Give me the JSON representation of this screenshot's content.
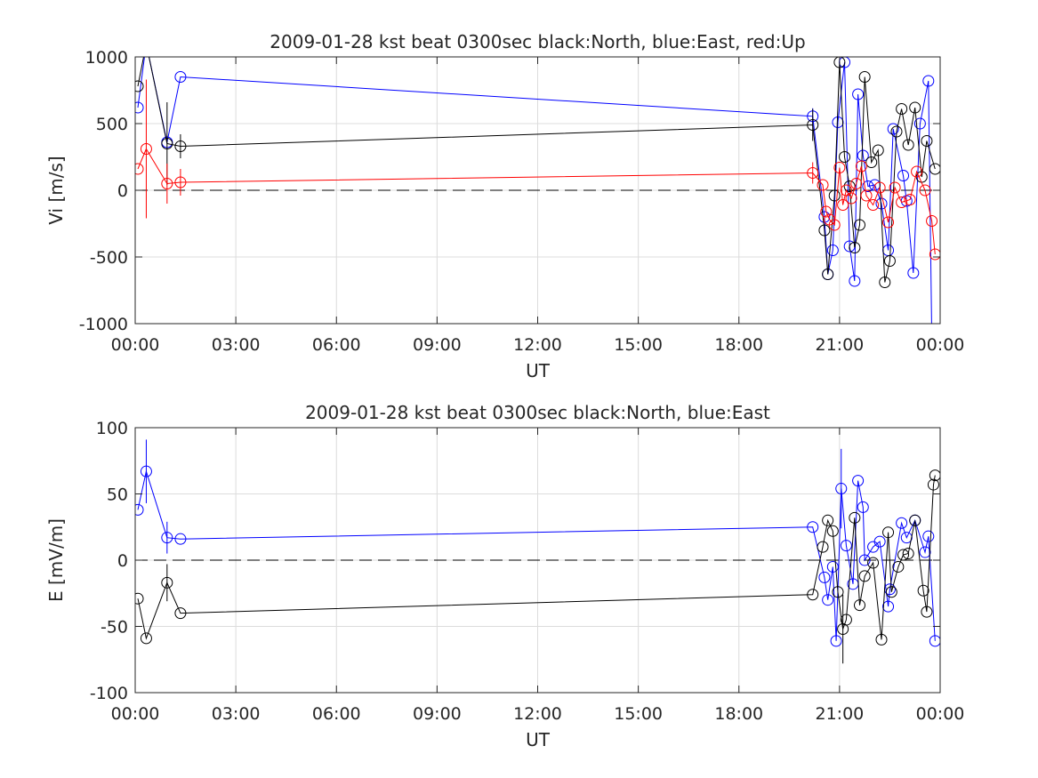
{
  "chart_data": [
    {
      "type": "line",
      "title": "2009-01-28 kst beat 0300sec black:North, blue:East, red:Up",
      "xlabel": "UT",
      "ylabel": "Vi [m/s]",
      "xlim_hours": [
        0,
        24
      ],
      "ylim": [
        -1000,
        1000
      ],
      "xticks": [
        0,
        3,
        6,
        9,
        12,
        15,
        18,
        21,
        24
      ],
      "xtick_labels": [
        "00:00",
        "03:00",
        "06:00",
        "09:00",
        "12:00",
        "15:00",
        "18:00",
        "21:00",
        "00:00"
      ],
      "yticks": [
        -1000,
        -500,
        0,
        500,
        1000
      ],
      "ytick_labels": [
        "-1000",
        "-500",
        "0",
        "500",
        "1000"
      ],
      "grid": true,
      "zero_line": "dashed",
      "series": [
        {
          "color": "#0000ff",
          "x": [
            0.08,
            0.33,
            0.95,
            1.35,
            20.2,
            20.55,
            20.65,
            20.8,
            20.95,
            21.15,
            21.3,
            21.45,
            21.55,
            21.7,
            21.85,
            22.05,
            22.25,
            22.45,
            22.6,
            22.9,
            23.0,
            23.2,
            23.4,
            23.65,
            23.75
          ],
          "y": [
            620,
            1100,
            360,
            850,
            555,
            -200,
            -630,
            -450,
            510,
            960,
            -420,
            -680,
            720,
            260,
            30,
            40,
            -100,
            -450,
            460,
            110,
            -80,
            -620,
            500,
            820,
            -1100
          ],
          "err": [
            0,
            0,
            0,
            0,
            60,
            0,
            0,
            0,
            0,
            0,
            0,
            0,
            0,
            0,
            0,
            0,
            0,
            0,
            0,
            0,
            0,
            0,
            0,
            0,
            0
          ]
        },
        {
          "color": "#000000",
          "x": [
            0.08,
            0.33,
            0.95,
            1.35,
            20.2,
            20.55,
            20.65,
            20.85,
            21.0,
            21.15,
            21.3,
            21.45,
            21.6,
            21.75,
            21.95,
            22.15,
            22.35,
            22.5,
            22.7,
            22.85,
            23.05,
            23.25,
            23.45,
            23.6,
            23.85
          ],
          "y": [
            780,
            1100,
            350,
            330,
            490,
            -300,
            -630,
            -40,
            960,
            250,
            30,
            -430,
            -260,
            850,
            210,
            300,
            -690,
            -530,
            440,
            610,
            340,
            620,
            100,
            370,
            160
          ],
          "err": [
            0,
            0,
            310,
            90,
            120,
            0,
            0,
            0,
            0,
            0,
            0,
            0,
            0,
            0,
            0,
            0,
            0,
            0,
            0,
            0,
            0,
            0,
            0,
            0,
            0
          ]
        },
        {
          "color": "#ff0000",
          "x": [
            0.08,
            0.33,
            0.95,
            1.35,
            20.2,
            20.5,
            20.6,
            20.7,
            20.85,
            21.0,
            21.1,
            21.2,
            21.35,
            21.5,
            21.65,
            21.8,
            22.0,
            22.2,
            22.45,
            22.65,
            22.85,
            23.1,
            23.3,
            23.55,
            23.75,
            23.85
          ],
          "y": [
            160,
            310,
            50,
            60,
            130,
            40,
            -160,
            -220,
            -260,
            170,
            -110,
            0,
            -60,
            50,
            180,
            -40,
            -110,
            20,
            -240,
            20,
            -90,
            -70,
            140,
            0,
            -230,
            -480
          ],
          "err": [
            0,
            520,
            150,
            100,
            80,
            0,
            0,
            0,
            0,
            0,
            0,
            0,
            0,
            0,
            0,
            0,
            0,
            0,
            0,
            0,
            0,
            0,
            0,
            0,
            0,
            0
          ]
        }
      ]
    },
    {
      "type": "line",
      "title": "2009-01-28 kst beat 0300sec black:North, blue:East",
      "xlabel": "UT",
      "ylabel": "E [mV/m]",
      "xlim_hours": [
        0,
        24
      ],
      "ylim": [
        -100,
        100
      ],
      "xticks": [
        0,
        3,
        6,
        9,
        12,
        15,
        18,
        21,
        24
      ],
      "xtick_labels": [
        "00:00",
        "03:00",
        "06:00",
        "09:00",
        "12:00",
        "15:00",
        "18:00",
        "21:00",
        "00:00"
      ],
      "yticks": [
        -100,
        -50,
        0,
        50,
        100
      ],
      "ytick_labels": [
        "-100",
        "-50",
        "0",
        "50",
        "100"
      ],
      "grid": true,
      "zero_line": "dashed",
      "series": [
        {
          "color": "#0000ff",
          "x": [
            0.08,
            0.33,
            0.95,
            1.35,
            20.2,
            20.55,
            20.65,
            20.8,
            20.9,
            21.05,
            21.2,
            21.4,
            21.55,
            21.7,
            21.75,
            22.0,
            22.2,
            22.45,
            22.5,
            22.85,
            23.0,
            23.25,
            23.55,
            23.65,
            23.85
          ],
          "y": [
            38,
            67,
            17,
            16,
            25,
            -13,
            -30,
            -5,
            -61,
            54,
            11,
            -18,
            60,
            40,
            0,
            10,
            14,
            -35,
            -22,
            28,
            17,
            30,
            6,
            18,
            -61
          ],
          "err": [
            0,
            24,
            12,
            0,
            0,
            0,
            0,
            0,
            0,
            30,
            0,
            0,
            0,
            0,
            0,
            0,
            0,
            0,
            0,
            0,
            0,
            0,
            0,
            0,
            0
          ]
        },
        {
          "color": "#000000",
          "x": [
            0.08,
            0.33,
            0.95,
            1.35,
            20.2,
            20.5,
            20.65,
            20.8,
            20.95,
            21.1,
            21.2,
            21.45,
            21.6,
            21.75,
            22.0,
            22.25,
            22.45,
            22.55,
            22.75,
            22.9,
            23.05,
            23.25,
            23.5,
            23.6,
            23.8,
            23.85
          ],
          "y": [
            -29,
            -59,
            -17,
            -40,
            -26,
            10,
            30,
            22,
            -24,
            -52,
            -45,
            32,
            -34,
            -12,
            -2,
            -60,
            21,
            -24,
            -5,
            4,
            5,
            30,
            -23,
            -39,
            57,
            64
          ],
          "err": [
            0,
            0,
            14,
            0,
            0,
            0,
            0,
            0,
            0,
            26,
            0,
            0,
            0,
            0,
            0,
            0,
            0,
            0,
            0,
            0,
            0,
            0,
            0,
            0,
            0,
            0
          ]
        }
      ]
    }
  ]
}
